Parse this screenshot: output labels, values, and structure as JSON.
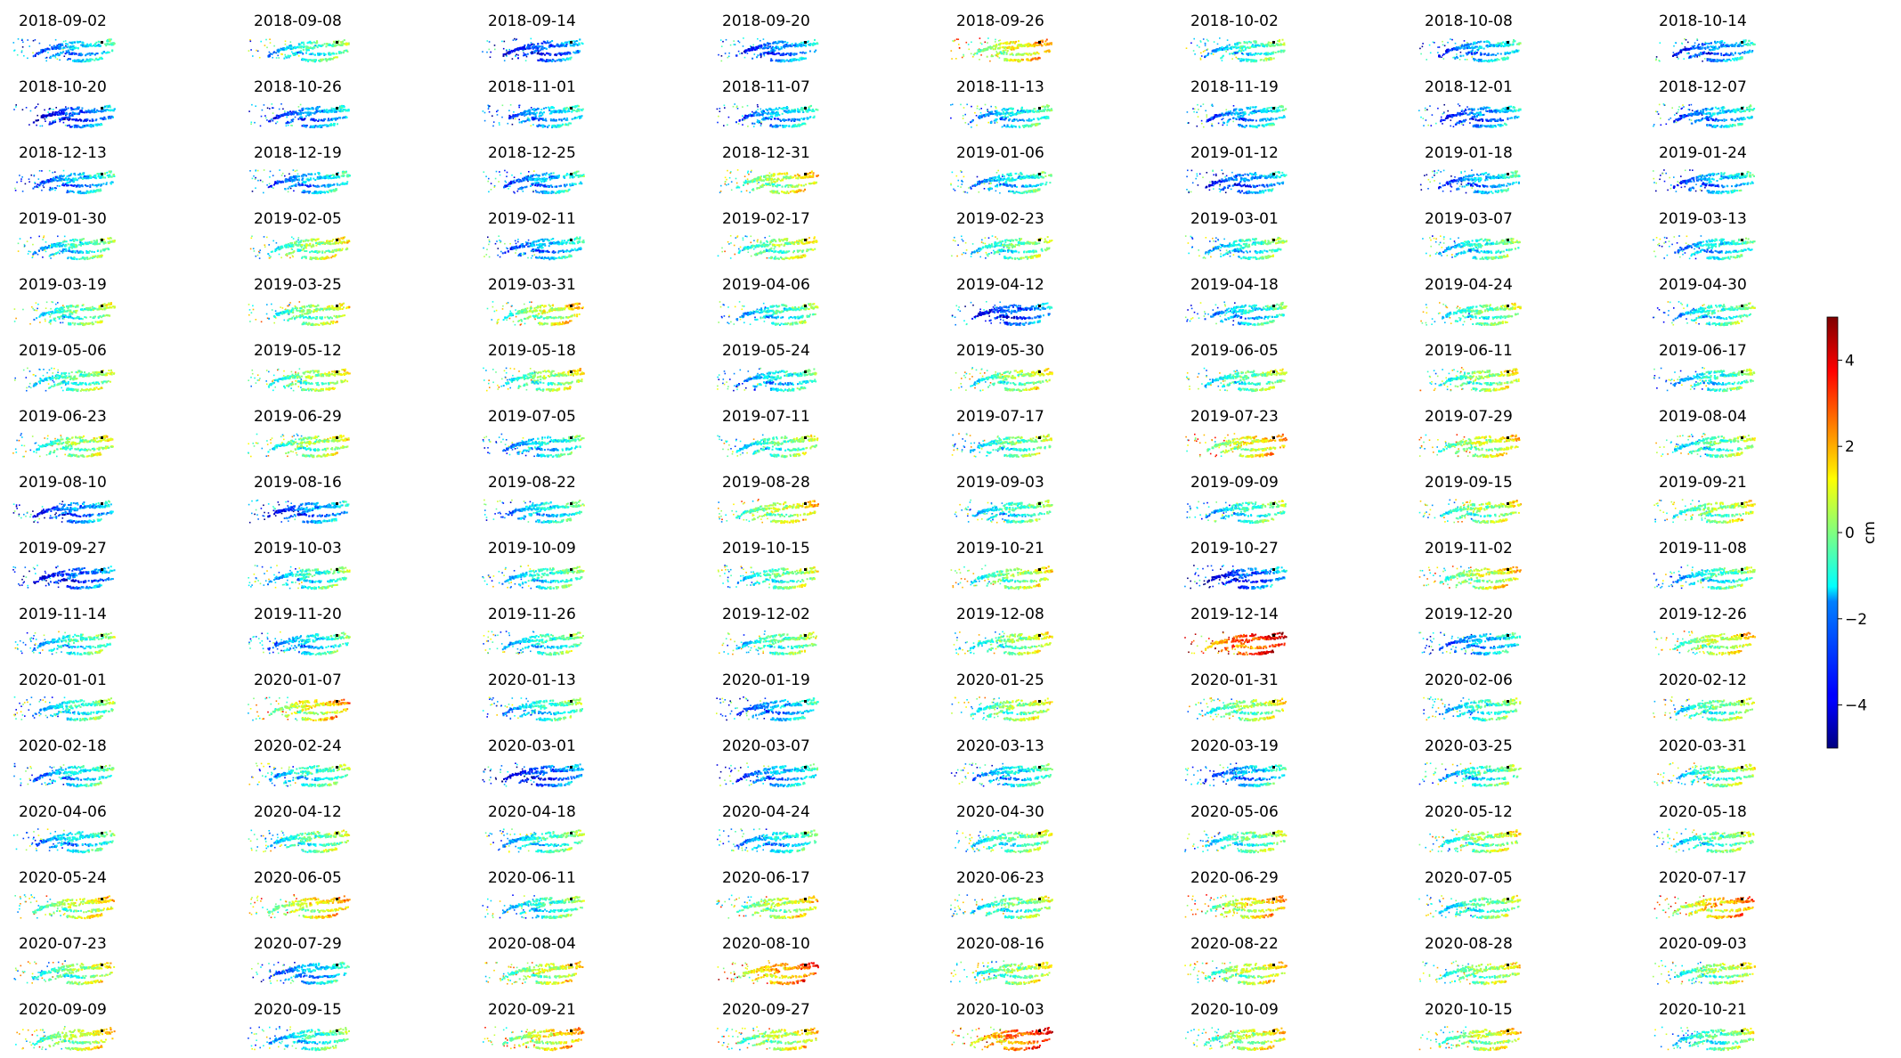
{
  "chart_data": {
    "type": "heatmap",
    "description_type": "small-multiples displacement maps",
    "colormap": "jet",
    "colorbar": {
      "label": "cm",
      "vmin": -5,
      "vmax": 5,
      "ticks": [
        -4,
        -2,
        0,
        2,
        4
      ],
      "tick_labels": [
        "−4",
        "−2",
        "0",
        "2",
        "4"
      ]
    },
    "grid": {
      "rows": 16,
      "cols": 8
    },
    "dates": [
      "2018-09-02",
      "2018-09-08",
      "2018-09-14",
      "2018-09-20",
      "2018-09-26",
      "2018-10-02",
      "2018-10-08",
      "2018-10-14",
      "2018-10-20",
      "2018-10-26",
      "2018-11-01",
      "2018-11-07",
      "2018-11-13",
      "2018-11-19",
      "2018-12-01",
      "2018-12-07",
      "2018-12-13",
      "2018-12-19",
      "2018-12-25",
      "2018-12-31",
      "2019-01-06",
      "2019-01-12",
      "2019-01-18",
      "2019-01-24",
      "2019-01-30",
      "2019-02-05",
      "2019-02-11",
      "2019-02-17",
      "2019-02-23",
      "2019-03-01",
      "2019-03-07",
      "2019-03-13",
      "2019-03-19",
      "2019-03-25",
      "2019-03-31",
      "2019-04-06",
      "2019-04-12",
      "2019-04-18",
      "2019-04-24",
      "2019-04-30",
      "2019-05-06",
      "2019-05-12",
      "2019-05-18",
      "2019-05-24",
      "2019-05-30",
      "2019-06-05",
      "2019-06-11",
      "2019-06-17",
      "2019-06-23",
      "2019-06-29",
      "2019-07-05",
      "2019-07-11",
      "2019-07-17",
      "2019-07-23",
      "2019-07-29",
      "2019-08-04",
      "2019-08-10",
      "2019-08-16",
      "2019-08-22",
      "2019-08-28",
      "2019-09-03",
      "2019-09-09",
      "2019-09-15",
      "2019-09-21",
      "2019-09-27",
      "2019-10-03",
      "2019-10-09",
      "2019-10-15",
      "2019-10-21",
      "2019-10-27",
      "2019-11-02",
      "2019-11-08",
      "2019-11-14",
      "2019-11-20",
      "2019-11-26",
      "2019-12-02",
      "2019-12-08",
      "2019-12-14",
      "2019-12-20",
      "2019-12-26",
      "2020-01-01",
      "2020-01-07",
      "2020-01-13",
      "2020-01-19",
      "2020-01-25",
      "2020-01-31",
      "2020-02-06",
      "2020-02-12",
      "2020-02-18",
      "2020-02-24",
      "2020-03-01",
      "2020-03-07",
      "2020-03-13",
      "2020-03-19",
      "2020-03-25",
      "2020-03-31",
      "2020-04-06",
      "2020-04-12",
      "2020-04-18",
      "2020-04-24",
      "2020-04-30",
      "2020-05-06",
      "2020-05-12",
      "2020-05-18",
      "2020-05-24",
      "2020-06-05",
      "2020-06-11",
      "2020-06-17",
      "2020-06-23",
      "2020-06-29",
      "2020-07-05",
      "2020-07-17",
      "2020-07-23",
      "2020-07-29",
      "2020-08-04",
      "2020-08-10",
      "2020-08-16",
      "2020-08-22",
      "2020-08-28",
      "2020-09-03",
      "2020-09-09",
      "2020-09-15",
      "2020-09-21",
      "2020-09-27",
      "2020-10-03",
      "2020-10-09",
      "2020-10-15",
      "2020-10-21"
    ],
    "dominant_value_cm": [
      -2.0,
      -1.0,
      -3.0,
      -2.5,
      1.0,
      -1.0,
      -2.0,
      -2.5,
      -3.0,
      -2.5,
      -2.0,
      -2.0,
      -1.5,
      -2.0,
      -2.5,
      -2.0,
      -2.0,
      -2.0,
      -2.0,
      0.5,
      -1.5,
      -2.5,
      -2.0,
      -2.0,
      -1.0,
      0.0,
      -2.0,
      0.0,
      -0.5,
      -1.0,
      -1.0,
      -1.5,
      -0.5,
      0.0,
      0.5,
      -1.0,
      -3.0,
      -1.5,
      -0.5,
      -1.0,
      -0.5,
      0.0,
      0.0,
      -1.5,
      0.0,
      -0.5,
      0.0,
      -1.0,
      0.0,
      0.0,
      -1.5,
      -0.5,
      -0.5,
      1.0,
      0.5,
      -0.5,
      -2.5,
      -2.5,
      -1.5,
      0.5,
      -1.0,
      -1.0,
      0.0,
      0.0,
      -3.0,
      -1.0,
      -1.0,
      -0.5,
      0.0,
      -3.0,
      0.5,
      -1.0,
      -1.0,
      -1.5,
      -1.0,
      -0.5,
      0.0,
      3.0,
      -2.0,
      0.5,
      -1.0,
      1.0,
      -1.0,
      -2.0,
      0.0,
      0.0,
      -1.0,
      -0.5,
      -1.5,
      -1.0,
      -3.0,
      -2.0,
      -1.5,
      -2.0,
      -1.0,
      -0.5,
      -1.5,
      -0.5,
      -1.0,
      -1.5,
      -0.5,
      -0.5,
      0.0,
      -0.5,
      0.5,
      1.0,
      -1.0,
      0.5,
      -0.5,
      1.0,
      -0.5,
      1.5,
      0.0,
      -2.0,
      0.5,
      2.0,
      0.0,
      0.5,
      0.0,
      0.0,
      0.5,
      -1.0,
      1.0,
      0.5,
      2.5,
      0.5,
      0.5,
      -0.5
    ]
  }
}
